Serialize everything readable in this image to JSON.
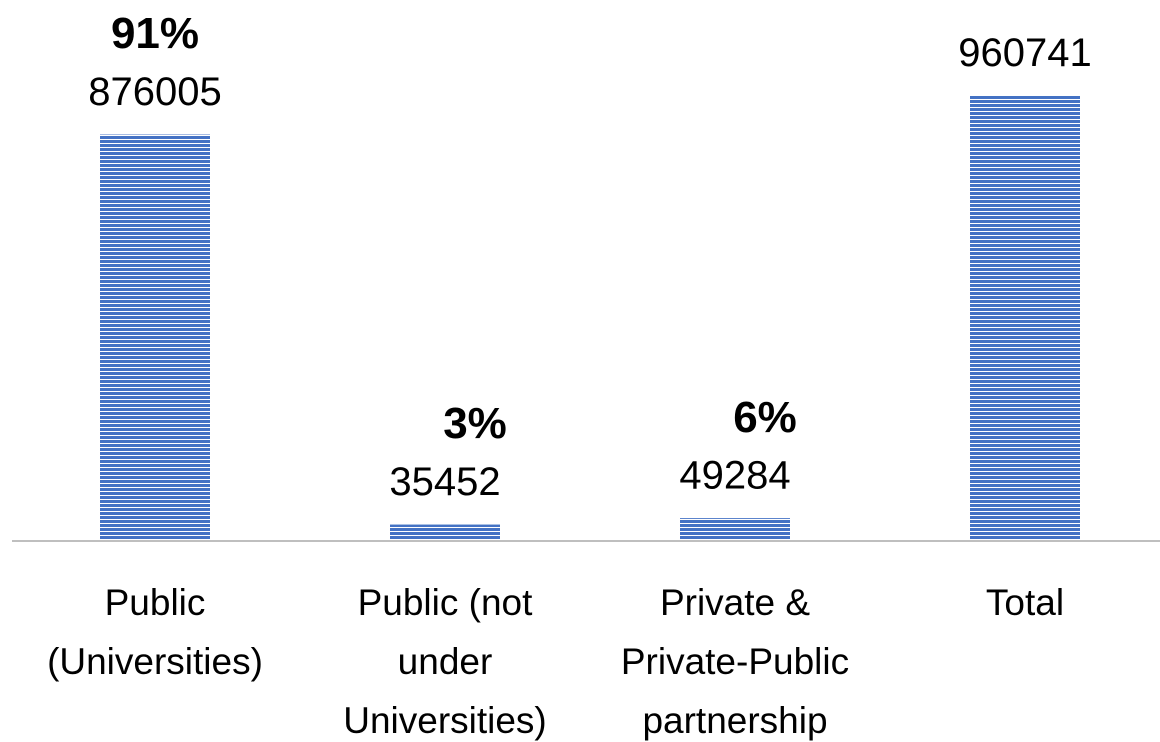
{
  "chart_data": {
    "type": "bar",
    "categories": [
      "Public\n(Universities)",
      "Public (not\nunder\nUniversities)",
      "Private &\nPrivate-Public\npartnership",
      "Total"
    ],
    "values": [
      876005,
      35452,
      49284,
      960741
    ],
    "annotations": [
      "91%",
      "3%",
      "6%",
      null
    ],
    "color": "#4472c4",
    "ylim": [
      0,
      1000000
    ]
  }
}
